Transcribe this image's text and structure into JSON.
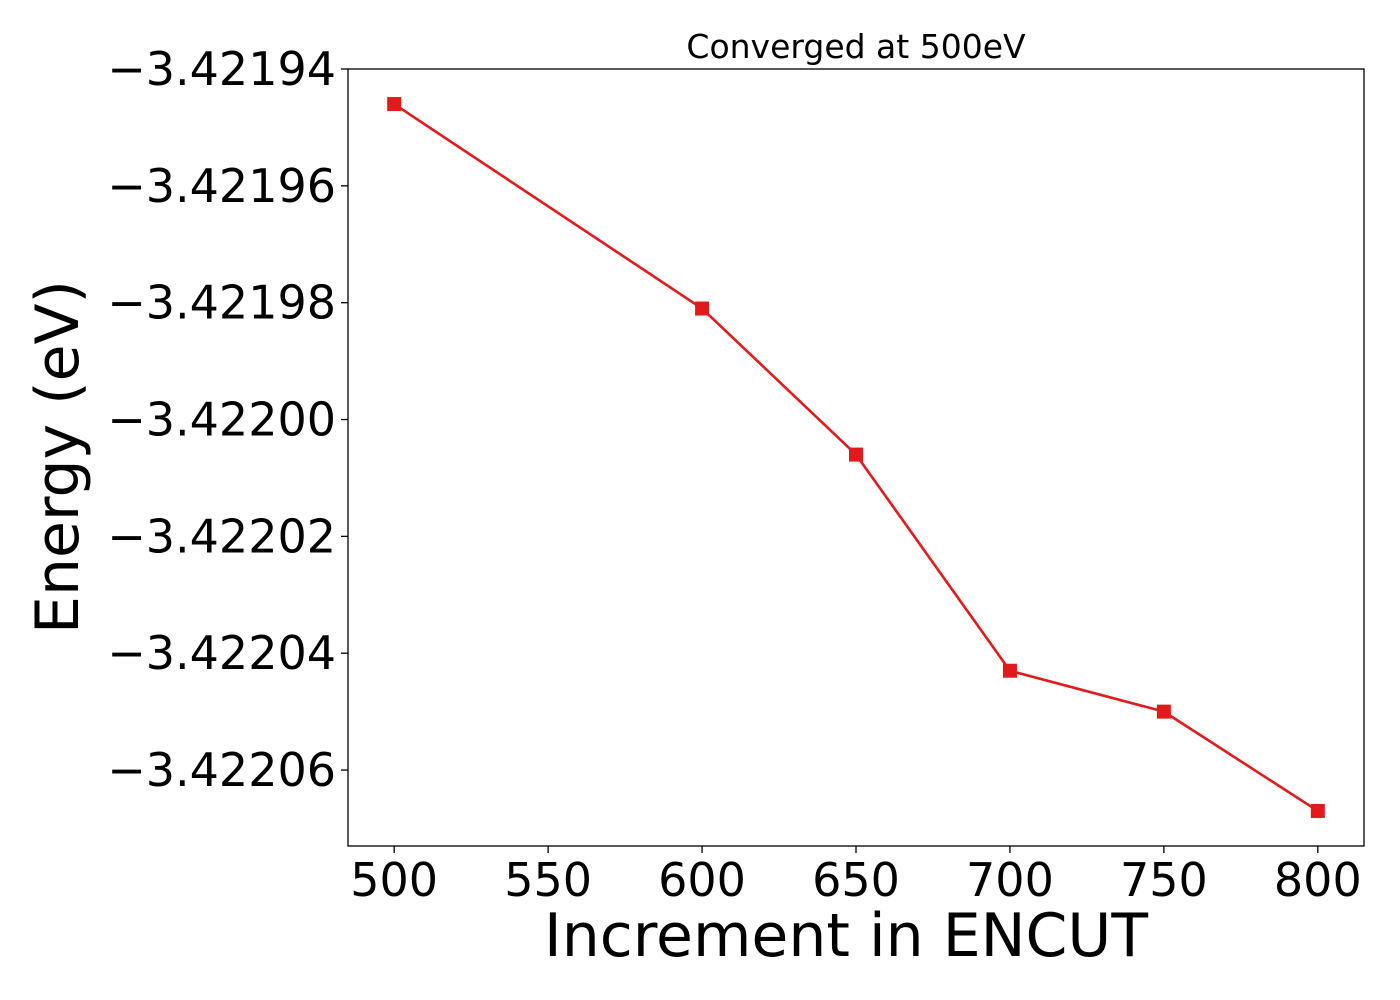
{
  "chart_data": {
    "type": "line",
    "title": "Converged at 500eV",
    "xlabel": "Increment in ENCUT",
    "ylabel": "Energy (eV)",
    "x": [
      500,
      600,
      650,
      700,
      750,
      800
    ],
    "series": [
      {
        "values": [
          -3.421946,
          -3.421981,
          -3.422006,
          -3.422043,
          -3.42205,
          -3.422067
        ],
        "color": "#e31a1c",
        "marker": "square"
      }
    ],
    "xlim": [
      485,
      815
    ],
    "ylim": [
      -3.422073,
      -3.42194
    ],
    "x_ticks": [
      500,
      550,
      600,
      650,
      700,
      750,
      800
    ],
    "x_tick_labels": [
      "500",
      "550",
      "600",
      "650",
      "700",
      "750",
      "800"
    ],
    "y_ticks": [
      -3.42194,
      -3.42196,
      -3.42198,
      -3.422,
      -3.42202,
      -3.42204,
      -3.42206
    ],
    "y_tick_labels": [
      "−3.42194",
      "−3.42196",
      "−3.42198",
      "−3.42200",
      "−3.42202",
      "−3.42204",
      "−3.42206"
    ],
    "grid": false,
    "legend": "none"
  }
}
